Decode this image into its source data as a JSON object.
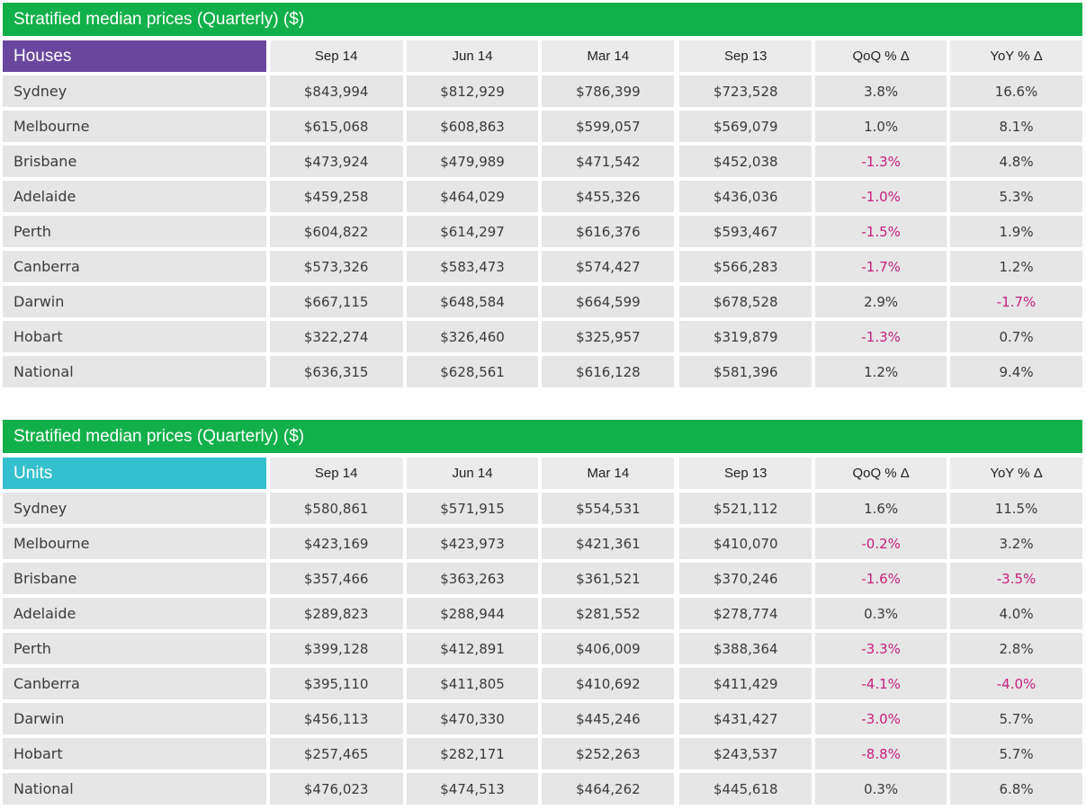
{
  "chart_data": [
    {
      "type": "table",
      "title": "Stratified median prices (Quarterly) ($)",
      "category_label": "Houses",
      "accent": "#6a479f",
      "banner_color": "#11b04a",
      "negative_color": "#c51f7e",
      "columns": [
        "Sep 14",
        "Jun 14",
        "Mar 14",
        "Sep 13",
        "QoQ % Δ",
        "YoY % Δ"
      ],
      "rows": [
        {
          "label": "Sydney",
          "values": [
            "$843,994",
            "$812,929",
            "$786,399",
            "$723,528",
            "3.8%",
            "16.6%"
          ]
        },
        {
          "label": "Melbourne",
          "values": [
            "$615,068",
            "$608,863",
            "$599,057",
            "$569,079",
            "1.0%",
            "8.1%"
          ]
        },
        {
          "label": "Brisbane",
          "values": [
            "$473,924",
            "$479,989",
            "$471,542",
            "$452,038",
            "-1.3%",
            "4.8%"
          ]
        },
        {
          "label": "Adelaide",
          "values": [
            "$459,258",
            "$464,029",
            "$455,326",
            "$436,036",
            "-1.0%",
            "5.3%"
          ]
        },
        {
          "label": "Perth",
          "values": [
            "$604,822",
            "$614,297",
            "$616,376",
            "$593,467",
            "-1.5%",
            "1.9%"
          ]
        },
        {
          "label": "Canberra",
          "values": [
            "$573,326",
            "$583,473",
            "$574,427",
            "$566,283",
            "-1.7%",
            "1.2%"
          ]
        },
        {
          "label": "Darwin",
          "values": [
            "$667,115",
            "$648,584",
            "$664,599",
            "$678,528",
            "2.9%",
            "-1.7%"
          ]
        },
        {
          "label": "Hobart",
          "values": [
            "$322,274",
            "$326,460",
            "$325,957",
            "$319,879",
            "-1.3%",
            "0.7%"
          ]
        },
        {
          "label": "National",
          "values": [
            "$636,315",
            "$628,561",
            "$616,128",
            "$581,396",
            "1.2%",
            "9.4%"
          ]
        }
      ]
    },
    {
      "type": "table",
      "title": "Stratified median prices (Quarterly) ($)",
      "category_label": "Units",
      "accent": "#35c0cf",
      "banner_color": "#11b04a",
      "negative_color": "#c51f7e",
      "columns": [
        "Sep 14",
        "Jun 14",
        "Mar 14",
        "Sep 13",
        "QoQ % Δ",
        "YoY % Δ"
      ],
      "rows": [
        {
          "label": "Sydney",
          "values": [
            "$580,861",
            "$571,915",
            "$554,531",
            "$521,112",
            "1.6%",
            "11.5%"
          ]
        },
        {
          "label": "Melbourne",
          "values": [
            "$423,169",
            "$423,973",
            "$421,361",
            "$410,070",
            "-0.2%",
            "3.2%"
          ]
        },
        {
          "label": "Brisbane",
          "values": [
            "$357,466",
            "$363,263",
            "$361,521",
            "$370,246",
            "-1.6%",
            "-3.5%"
          ]
        },
        {
          "label": "Adelaide",
          "values": [
            "$289,823",
            "$288,944",
            "$281,552",
            "$278,774",
            "0.3%",
            "4.0%"
          ]
        },
        {
          "label": "Perth",
          "values": [
            "$399,128",
            "$412,891",
            "$406,009",
            "$388,364",
            "-3.3%",
            "2.8%"
          ]
        },
        {
          "label": "Canberra",
          "values": [
            "$395,110",
            "$411,805",
            "$410,692",
            "$411,429",
            "-4.1%",
            "-4.0%"
          ]
        },
        {
          "label": "Darwin",
          "values": [
            "$456,113",
            "$470,330",
            "$445,246",
            "$431,427",
            "-3.0%",
            "5.7%"
          ]
        },
        {
          "label": "Hobart",
          "values": [
            "$257,465",
            "$282,171",
            "$252,263",
            "$243,537",
            "-8.8%",
            "5.7%"
          ]
        },
        {
          "label": "National",
          "values": [
            "$476,023",
            "$474,513",
            "$464,262",
            "$445,618",
            "0.3%",
            "6.8%"
          ]
        }
      ]
    }
  ]
}
